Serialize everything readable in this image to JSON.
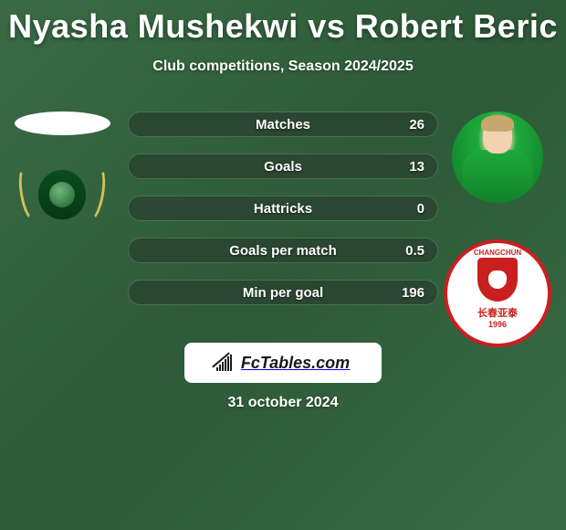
{
  "title": "Nyasha Mushekwi vs Robert Beric",
  "subtitle": "Club competitions, Season 2024/2025",
  "date": "31 october 2024",
  "logo_text": "FcTables.com",
  "colors": {
    "bg_gradient_a": "#3a6b45",
    "bg_gradient_b": "#2d5a38",
    "bar_bg": "#3d5f44",
    "bar_fill": "#2a4731",
    "text": "#ffffff",
    "logo_bg": "#ffffff",
    "logo_fg": "#1a1a1a",
    "badge_red": "#c91f1f",
    "shield_green": "#0a4d1e",
    "laurel": "#d4c05a",
    "jersey": "#1eaa3c"
  },
  "stats": [
    {
      "label": "Matches",
      "value": "26",
      "fill_pct": 100
    },
    {
      "label": "Goals",
      "value": "13",
      "fill_pct": 100
    },
    {
      "label": "Hattricks",
      "value": "0",
      "fill_pct": 100
    },
    {
      "label": "Goals per match",
      "value": "0.5",
      "fill_pct": 100
    },
    {
      "label": "Min per goal",
      "value": "196",
      "fill_pct": 100
    }
  ],
  "badge_right": {
    "top_text": "CHANGCHUN",
    "zh_text": "长春亚泰",
    "year": "1996"
  },
  "logo_bar_heights": [
    4,
    7,
    10,
    13,
    16,
    18
  ]
}
